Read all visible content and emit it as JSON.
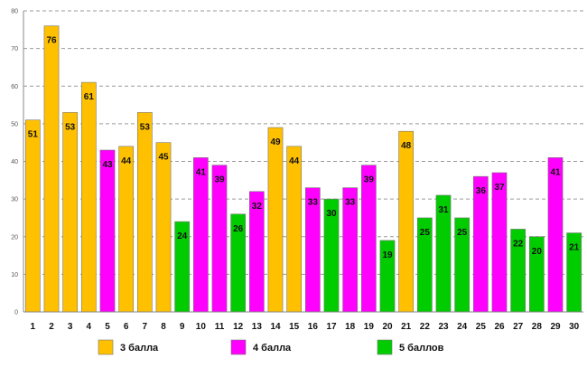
{
  "chart_data": {
    "type": "bar",
    "title": "",
    "xlabel": "",
    "ylabel": "",
    "ylim": [
      0,
      80
    ],
    "yticks": [
      0,
      10,
      20,
      30,
      40,
      50,
      60,
      70,
      80
    ],
    "grid": true,
    "legend_position": "bottom",
    "categories": [
      "1",
      "2",
      "3",
      "4",
      "5",
      "6",
      "7",
      "8",
      "9",
      "10",
      "11",
      "12",
      "13",
      "14",
      "15",
      "16",
      "17",
      "18",
      "19",
      "20",
      "21",
      "22",
      "23",
      "24",
      "25",
      "26",
      "27",
      "28",
      "29",
      "30"
    ],
    "values": [
      51,
      76,
      53,
      61,
      43,
      44,
      53,
      45,
      24,
      41,
      39,
      26,
      32,
      49,
      44,
      33,
      30,
      33,
      39,
      19,
      48,
      25,
      31,
      25,
      36,
      37,
      22,
      20,
      41,
      21
    ],
    "groups": [
      0,
      0,
      0,
      0,
      1,
      0,
      0,
      0,
      2,
      1,
      1,
      2,
      1,
      0,
      0,
      1,
      2,
      1,
      1,
      2,
      0,
      2,
      2,
      2,
      1,
      1,
      2,
      2,
      1,
      2
    ],
    "series": [
      {
        "name": "3 балла",
        "color": "#ffc000"
      },
      {
        "name": "4 балла",
        "color": "#ff00ff"
      },
      {
        "name": "5 баллов",
        "color": "#00cc00"
      }
    ]
  }
}
